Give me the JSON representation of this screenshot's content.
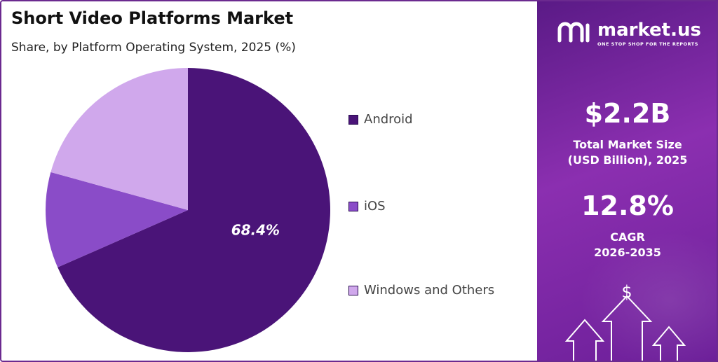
{
  "title": "Short Video Platforms Market",
  "subtitle": "Share, by Platform Operating System, 2025 (%)",
  "chart_data": {
    "type": "pie",
    "categories": [
      "Android",
      "iOS",
      "Windows and Others"
    ],
    "values": [
      68.4,
      10.9,
      20.7
    ],
    "colors": [
      "#4a1478",
      "#8a4cc8",
      "#d0a8ec"
    ],
    "data_labels": [
      "68.4%",
      "",
      ""
    ],
    "start_angle": "12 o'clock",
    "direction": "clockwise",
    "legend_position": "right"
  },
  "brand": {
    "name": "market.us",
    "tagline": "ONE STOP SHOP FOR THE REPORTS"
  },
  "stats": {
    "market_size_value": "$2.2B",
    "market_size_label_line1": "Total Market Size",
    "market_size_label_line2": "(USD Billion), 2025",
    "cagr_value": "12.8%",
    "cagr_label_line1": "CAGR",
    "cagr_label_line2": "2026-2035"
  },
  "icons": {
    "logo": "market-us-logo-icon",
    "dollar": "dollar-icon",
    "arrows": "up-arrows-icon"
  }
}
